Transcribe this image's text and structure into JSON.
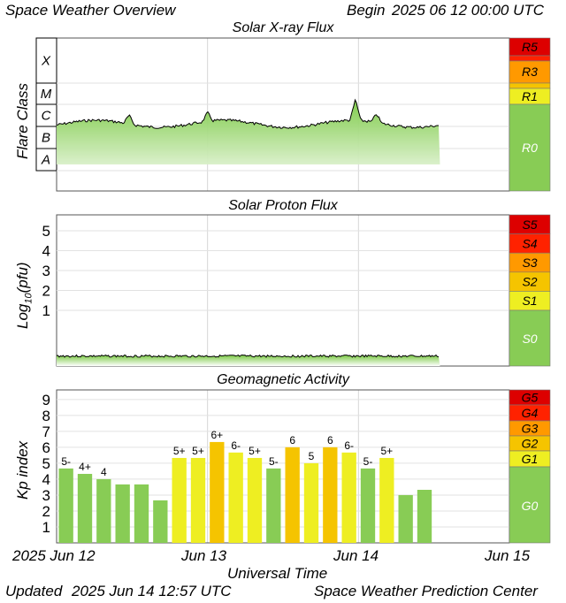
{
  "header": {
    "title": "Space Weather Overview",
    "begin_label": "Begin",
    "begin_date": "2025 06 12 00:00 UTC"
  },
  "footer": {
    "updated_label": "Updated",
    "updated_date": "2025 Jun 14 12:57 UTC",
    "center": "Space Weather Prediction Center"
  },
  "x_axis": {
    "label": "Universal Time",
    "ticks": [
      "2025 Jun 12",
      "Jun 13",
      "Jun 14",
      "Jun 15"
    ]
  },
  "colors": {
    "quiet": "#88cc55",
    "minor": "#eeee22",
    "moderate": "#f5c400",
    "strong": "#ff9900",
    "severe": "#ff2200",
    "extreme": "#dd0000"
  },
  "chart_data": [
    {
      "type": "area",
      "title": "Solar X-ray Flux",
      "ylabel": "Flare Class",
      "y_classes": [
        "X",
        "M",
        "C",
        "B",
        "A"
      ],
      "x_range_days": [
        0,
        3
      ],
      "data_end_day": 2.54,
      "baseline_class": "C",
      "peaks": [
        {
          "day": 0.48,
          "class": "C2"
        },
        {
          "day": 1.0,
          "class": "C2"
        },
        {
          "day": 1.98,
          "class": "C9"
        },
        {
          "day": 2.12,
          "class": "C2"
        }
      ],
      "scale": {
        "title": "",
        "levels": [
          "R5",
          "R3",
          "R1",
          "R0"
        ]
      }
    },
    {
      "type": "area",
      "title": "Solar Proton Flux",
      "ylabel": "Log10(pfu)",
      "ylabel_main": "Log",
      "ylabel_sub": "10",
      "ylabel_tail": "(pfu)",
      "yticks": [
        "5",
        "4",
        "3",
        "2",
        "1"
      ],
      "ylim": [
        -1.8,
        5.8
      ],
      "level": -1.3,
      "x_range_days": [
        0,
        3
      ],
      "data_end_day": 2.54,
      "scale": {
        "levels": [
          "S5",
          "S4",
          "S3",
          "S2",
          "S1",
          "S0"
        ]
      }
    },
    {
      "type": "bar",
      "title": "Geomagnetic Activity",
      "ylabel": "Kp index",
      "yticks": [
        "9",
        "8",
        "7",
        "6",
        "5",
        "4",
        "3",
        "2",
        "1"
      ],
      "ylim": [
        0,
        9.6
      ],
      "bars": [
        {
          "value": 4.67,
          "label": "5-",
          "level": "quiet"
        },
        {
          "value": 4.33,
          "label": "4+",
          "level": "quiet"
        },
        {
          "value": 4.0,
          "label": "4",
          "level": "quiet"
        },
        {
          "value": 3.67,
          "label": "",
          "level": "quiet"
        },
        {
          "value": 3.67,
          "label": "",
          "level": "quiet"
        },
        {
          "value": 2.67,
          "label": "",
          "level": "quiet"
        },
        {
          "value": 5.33,
          "label": "5+",
          "level": "minor"
        },
        {
          "value": 5.33,
          "label": "5+",
          "level": "minor"
        },
        {
          "value": 6.33,
          "label": "6+",
          "level": "moderate"
        },
        {
          "value": 5.67,
          "label": "6-",
          "level": "minor"
        },
        {
          "value": 5.33,
          "label": "5+",
          "level": "minor"
        },
        {
          "value": 4.67,
          "label": "5-",
          "level": "quiet"
        },
        {
          "value": 6.0,
          "label": "6",
          "level": "moderate"
        },
        {
          "value": 5.0,
          "label": "5",
          "level": "minor"
        },
        {
          "value": 6.0,
          "label": "6",
          "level": "moderate"
        },
        {
          "value": 5.67,
          "label": "6-",
          "level": "minor"
        },
        {
          "value": 4.67,
          "label": "5-",
          "level": "quiet"
        },
        {
          "value": 5.33,
          "label": "5+",
          "level": "minor"
        },
        {
          "value": 3.0,
          "label": "",
          "level": "quiet"
        },
        {
          "value": 3.33,
          "label": "",
          "level": "quiet"
        }
      ],
      "scale": {
        "levels": [
          "G5",
          "G4",
          "G3",
          "G2",
          "G1",
          "G0"
        ]
      }
    }
  ]
}
